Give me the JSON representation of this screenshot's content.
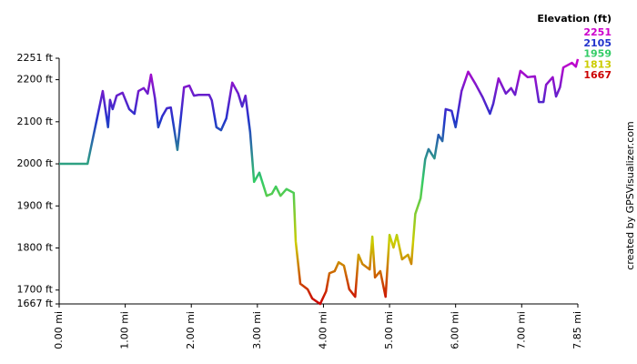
{
  "chart_data": {
    "type": "line",
    "legend": {
      "title": "Elevation (ft)",
      "values": [
        2251,
        2105,
        1959,
        1813,
        1667
      ],
      "colors": [
        "#cc00cc",
        "#2233cc",
        "#33cc66",
        "#cccc00",
        "#cc0000"
      ]
    },
    "credit": "created by GPSVisualizer.com",
    "x": [
      0,
      0.43,
      0.66,
      0.74,
      0.77,
      0.81,
      0.87,
      0.96,
      1.06,
      1.14,
      1.2,
      1.28,
      1.34,
      1.39,
      1.45,
      1.5,
      1.56,
      1.63,
      1.69,
      1.79,
      1.89,
      1.97,
      2.04,
      2.11,
      2.27,
      2.31,
      2.38,
      2.45,
      2.53,
      2.62,
      2.71,
      2.77,
      2.82,
      2.89,
      2.95,
      3.03,
      3.14,
      3.22,
      3.28,
      3.35,
      3.44,
      3.55,
      3.58,
      3.65,
      3.76,
      3.83,
      3.95,
      4.04,
      4.09,
      4.17,
      4.23,
      4.31,
      4.39,
      4.48,
      4.53,
      4.59,
      4.7,
      4.74,
      4.78,
      4.86,
      4.94,
      5.0,
      5.06,
      5.11,
      5.19,
      5.28,
      5.33,
      5.39,
      5.47,
      5.54,
      5.59,
      5.68,
      5.74,
      5.8,
      5.85,
      5.94,
      6.0,
      6.09,
      6.19,
      6.3,
      6.41,
      6.52,
      6.57,
      6.65,
      6.76,
      6.84,
      6.9,
      6.98,
      7.09,
      7.2,
      7.26,
      7.33,
      7.37,
      7.47,
      7.52,
      7.58,
      7.63,
      7.76,
      7.82,
      7.85
    ],
    "series": [
      {
        "name": "Elevation",
        "values": [
          2000,
          2000,
          2173,
          2087,
          2152,
          2130,
          2162,
          2169,
          2130,
          2119,
          2173,
          2180,
          2167,
          2212,
          2156,
          2087,
          2113,
          2132,
          2134,
          2033,
          2182,
          2186,
          2162,
          2164,
          2164,
          2151,
          2087,
          2080,
          2108,
          2193,
          2167,
          2136,
          2162,
          2076,
          1957,
          1979,
          1924,
          1929,
          1946,
          1924,
          1940,
          1931,
          1816,
          1715,
          1702,
          1680,
          1667,
          1697,
          1740,
          1745,
          1766,
          1758,
          1702,
          1684,
          1784,
          1762,
          1749,
          1827,
          1730,
          1745,
          1684,
          1831,
          1801,
          1831,
          1773,
          1784,
          1762,
          1881,
          1918,
          2011,
          2035,
          2013,
          2069,
          2054,
          2130,
          2126,
          2087,
          2173,
          2219,
          2190,
          2158,
          2119,
          2143,
          2203,
          2167,
          2180,
          2164,
          2221,
          2206,
          2208,
          2147,
          2147,
          2188,
          2206,
          2160,
          2182,
          2229,
          2240,
          2231,
          2249
        ]
      }
    ],
    "xlim": [
      0,
      7.85
    ],
    "xticks": [
      {
        "value": 0,
        "label": "0.00 mi"
      },
      {
        "value": 1,
        "label": "1.00 mi"
      },
      {
        "value": 2,
        "label": "2.00 mi"
      },
      {
        "value": 3,
        "label": "3.00 mi"
      },
      {
        "value": 4,
        "label": "4.00 mi"
      },
      {
        "value": 5,
        "label": "5.00 mi"
      },
      {
        "value": 6,
        "label": "6.00 mi"
      },
      {
        "value": 7,
        "label": "7.00 mi"
      },
      {
        "value": 7.85,
        "label": "7.85 mi"
      }
    ],
    "ylim": [
      1667,
      2251
    ],
    "yticks": [
      {
        "value": 1667,
        "label": "1667 ft"
      },
      {
        "value": 1700,
        "label": "1700 ft"
      },
      {
        "value": 1800,
        "label": "1800 ft"
      },
      {
        "value": 1900,
        "label": "1900 ft"
      },
      {
        "value": 2000,
        "label": "2000 ft"
      },
      {
        "value": 2100,
        "label": "2100 ft"
      },
      {
        "value": 2200,
        "label": "2200 ft"
      },
      {
        "value": 2251,
        "label": "2251 ft"
      }
    ]
  }
}
